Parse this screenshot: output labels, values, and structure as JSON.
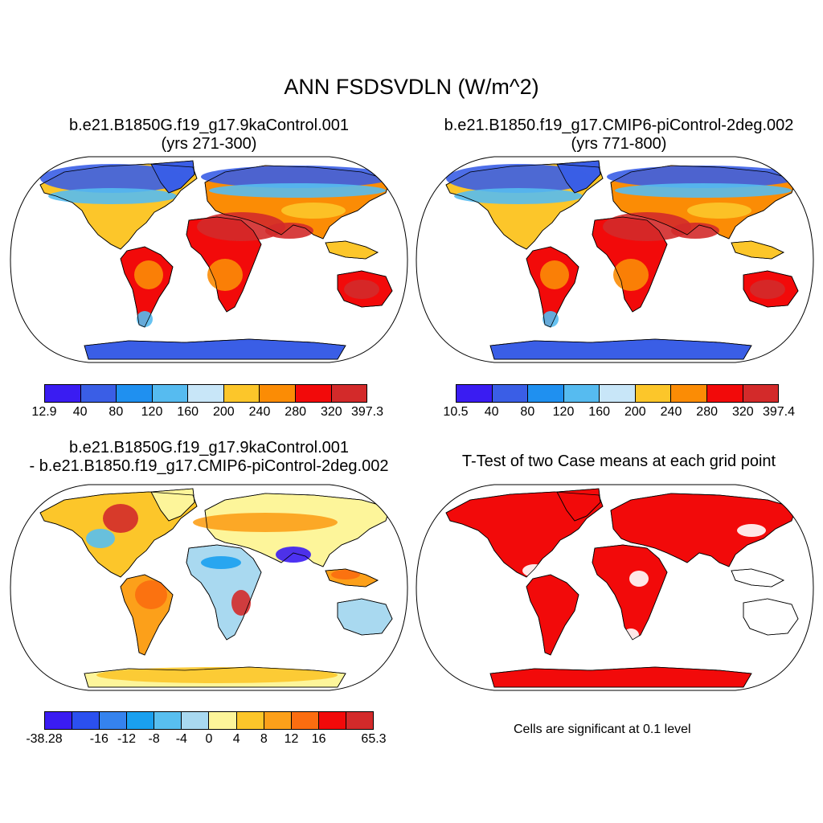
{
  "title": "ANN FSDSVDLN (W/m^2)",
  "panels": {
    "case1": {
      "line1": "b.e21.B1850G.f19_g17.9kaControl.001",
      "line2": "(yrs 271-300)",
      "colorbar": {
        "colors": [
          "#3a1cf2",
          "#3a5ee6",
          "#1f90f0",
          "#56bbf0",
          "#c8e6f8",
          "#fcc62a",
          "#fb8c05",
          "#f20a0a",
          "#d32a2a"
        ],
        "labels": [
          "12.9",
          "40",
          "80",
          "120",
          "160",
          "200",
          "240",
          "280",
          "320",
          "397.3"
        ]
      }
    },
    "case2": {
      "line1": "b.e21.B1850.f19_g17.CMIP6-piControl-2deg.002",
      "line2": "(yrs 771-800)",
      "colorbar": {
        "colors": [
          "#3a1cf2",
          "#3a5ee6",
          "#1f90f0",
          "#56bbf0",
          "#c8e6f8",
          "#fcc62a",
          "#fb8c05",
          "#f20a0a",
          "#d32a2a"
        ],
        "labels": [
          "10.5",
          "40",
          "80",
          "120",
          "160",
          "200",
          "240",
          "280",
          "320",
          "397.4"
        ]
      }
    },
    "diff": {
      "line1": "b.e21.B1850G.f19_g17.9kaControl.001",
      "line2": "- b.e21.B1850.f19_g17.CMIP6-piControl-2deg.002",
      "colorbar": {
        "colors": [
          "#3a1cf2",
          "#2b50ef",
          "#3583ee",
          "#1aa0ef",
          "#58bff0",
          "#a9d9f0",
          "#fdf59a",
          "#fcc62a",
          "#fca01a",
          "#fb6d10",
          "#f20a0a",
          "#d32a2a"
        ],
        "labels": [
          "-38.28",
          "-16",
          "-12",
          "-8",
          "-4",
          "0",
          "4",
          "8",
          "12",
          "16",
          "65.3"
        ],
        "label_positions": [
          0,
          2,
          3,
          4,
          5,
          6,
          7,
          8,
          9,
          10,
          12
        ]
      }
    },
    "ttest": {
      "title": "T-Test of two Case means at each grid point",
      "note": "Cells are significant at 0.1 level",
      "color": "#f20a0a"
    }
  }
}
